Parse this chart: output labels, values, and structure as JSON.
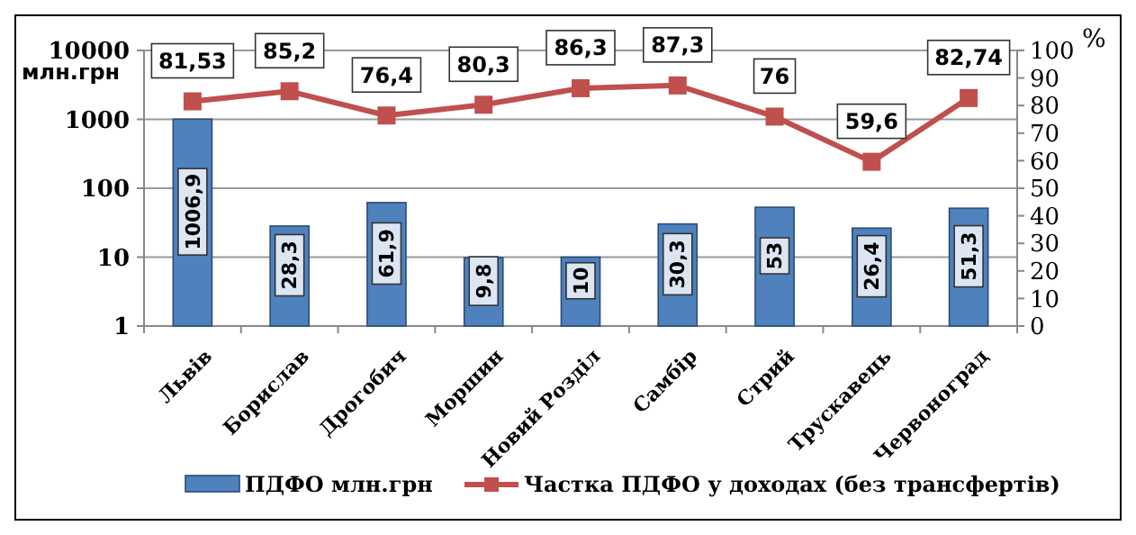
{
  "chart_data": {
    "type": "bar",
    "ylabel": "млн.грн",
    "y2label": "%",
    "categories": [
      "Львів",
      "Борислав",
      "Дрогобич",
      "Моршин",
      "Новий Розділ",
      "Самбір",
      "Стрий",
      "Трускавець",
      "Червоноград"
    ],
    "series": [
      {
        "name": "ПДФО млн.грн",
        "color": "#4f81bd",
        "values": [
          1006.9,
          28.3,
          61.9,
          9.8,
          10,
          30.3,
          53,
          26.4,
          51.3
        ],
        "value_labels": [
          "1006,9",
          "28,3",
          "61,9",
          "9,8",
          "10",
          "30,3",
          "53",
          "26,4",
          "51,3"
        ]
      },
      {
        "name": "Частка ПДФО у доходах (без трансфертів)",
        "type": "line",
        "axis": "y2",
        "color": "#c0504d",
        "marker": "square",
        "values": [
          81.53,
          85.2,
          76.4,
          80.3,
          86.3,
          87.3,
          76,
          59.6,
          82.74
        ],
        "value_labels": [
          "81,53",
          "85,2",
          "76,4",
          "80,3",
          "86,3",
          "87,3",
          "76",
          "59,6",
          "82,74"
        ]
      }
    ],
    "log": "y",
    "ylim": [
      1,
      10000
    ],
    "yticks": [
      1,
      10,
      100,
      1000,
      10000
    ],
    "y2lim": [
      0,
      100
    ],
    "y2ticks": [
      0,
      10,
      20,
      30,
      40,
      50,
      60,
      70,
      80,
      90,
      100
    ],
    "grid": "y",
    "legend": "bottom"
  }
}
